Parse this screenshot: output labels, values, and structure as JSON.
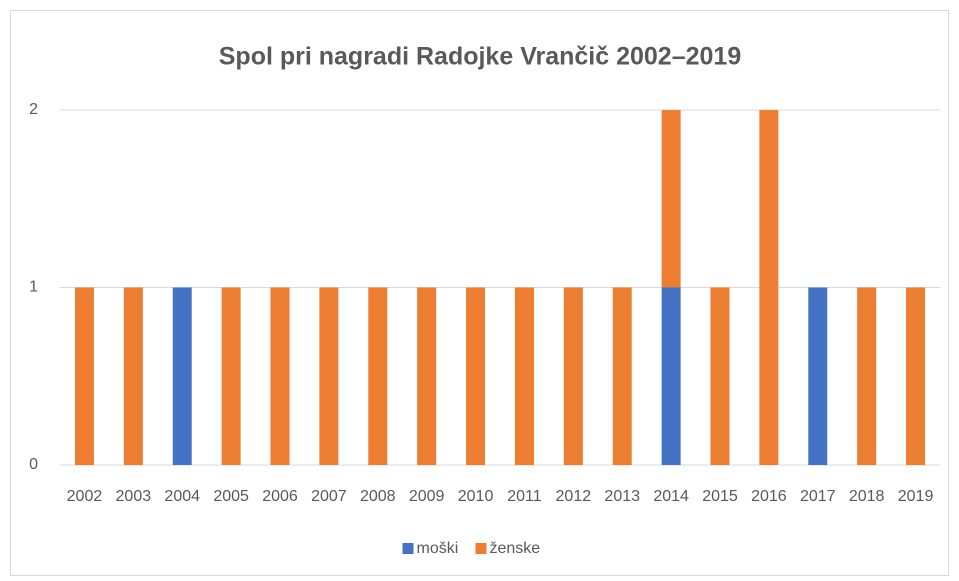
{
  "chart_data": {
    "type": "stacked_bar",
    "title": "Spol pri nagradi Radojke Vrančič 2002–2019",
    "categories": [
      "2002",
      "2003",
      "2004",
      "2005",
      "2006",
      "2007",
      "2008",
      "2009",
      "2010",
      "2011",
      "2012",
      "2013",
      "2014",
      "2015",
      "2016",
      "2017",
      "2018",
      "2019"
    ],
    "series": [
      {
        "name": "moški",
        "color": "#4472c4",
        "values": [
          0,
          0,
          1,
          0,
          0,
          0,
          0,
          0,
          0,
          0,
          0,
          0,
          1,
          0,
          0,
          1,
          0,
          0
        ]
      },
      {
        "name": "ženske",
        "color": "#ed7d31",
        "values": [
          1,
          1,
          0,
          1,
          1,
          1,
          1,
          1,
          1,
          1,
          1,
          1,
          1,
          1,
          2,
          0,
          1,
          1
        ]
      }
    ],
    "ylim": [
      0,
      2
    ],
    "yticks": [
      0,
      1,
      2
    ],
    "grid": true,
    "legend": "bottom"
  }
}
